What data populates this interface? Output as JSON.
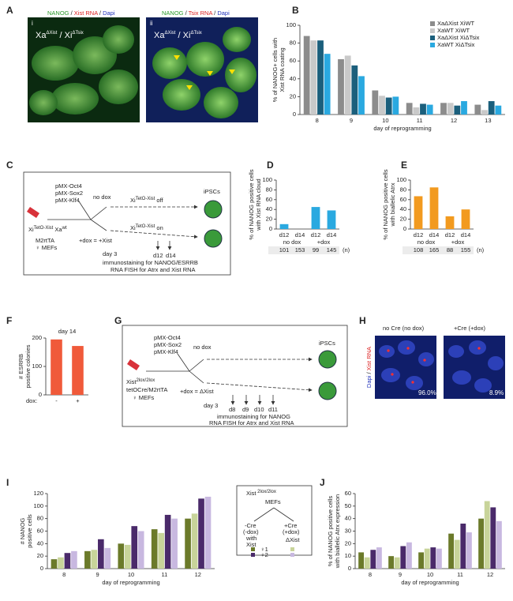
{
  "figure": {
    "A": {
      "letter": "A",
      "i": {
        "label": "i",
        "stain": [
          "NANOG",
          " / ",
          "Xist RNA",
          " / ",
          "Dapi"
        ],
        "genotype": [
          "Xa",
          "ΔXist",
          " / Xi",
          "ΔTsix"
        ]
      },
      "ii": {
        "label": "ii",
        "stain": [
          "NANOG",
          " / ",
          "Tsix RNA",
          " / ",
          "Dapi"
        ],
        "genotype": [
          "Xa",
          "ΔXist",
          " / Xi",
          "ΔTsix"
        ]
      }
    },
    "C": {
      "letter": "C",
      "plasmids": [
        "pMX-Oct4",
        "pMX-Sox2",
        "pMX-Klf4"
      ],
      "nodox": "no dox",
      "ipsc": "iPSCs",
      "off": [
        "Xi",
        "TetO-Xist",
        " off"
      ],
      "on": [
        "Xi",
        "TetO-Xist",
        " on"
      ],
      "dox": "+dox = +Xist",
      "cell": [
        "Xi",
        "TetO-Xist",
        " Xa",
        "wt"
      ],
      "line2": "M2rtTA",
      "line3": "♀ MEFs",
      "days": [
        "d12",
        "d14"
      ],
      "day3": "day 3",
      "notes": [
        "immunostaining for NANOG/ESRRB",
        "RNA FISH for Atrx and Xist RNA"
      ]
    },
    "G": {
      "letter": "G",
      "plasmids": [
        "pMX-Oct4",
        "pMX-Sox2",
        "pMX-Klf4"
      ],
      "nodox": "no dox",
      "ipsc": "iPSCs",
      "cell": [
        "Xist",
        "2lox/2lox"
      ],
      "line2": "tetOCre/M2rtTA",
      "line3": "♀ MEFs",
      "dox": "+dox = ΔXist",
      "days": [
        "d8",
        "d9",
        "d10",
        "d11"
      ],
      "day3": "day 3",
      "notes": [
        "immunostaining for NANOG",
        "RNA FISH for Atrx and Xist RNA"
      ]
    },
    "H": {
      "letter": "H",
      "titles": [
        "no Cre (no dox)",
        "+Cre (+dox)"
      ],
      "stain": [
        "Dapi",
        " / ",
        "Xist RNA"
      ],
      "pct": [
        "96.0%",
        "8.9%"
      ]
    },
    "legend_IJ": {
      "title": [
        "Xist",
        " 2lox/2lox"
      ],
      "sub": "MEFs",
      "cols": [
        "-Cre",
        "(-dox)",
        "+Cre",
        "(+dox)"
      ],
      "with": [
        "with",
        "Xist"
      ],
      "delta": "ΔXist",
      "rows": [
        "♀1",
        "♀2"
      ]
    }
  },
  "chart_data": [
    {
      "panel": "B",
      "type": "bar",
      "categories": [
        "8",
        "9",
        "10",
        "11",
        "12",
        "13"
      ],
      "series": [
        {
          "name": "XaΔXist XiWT",
          "color": "#8c8c8c",
          "values": [
            88,
            62,
            27,
            13,
            13,
            11
          ]
        },
        {
          "name": "XaWT XiWT",
          "color": "#c9c9c9",
          "values": [
            83,
            66,
            21,
            8,
            13,
            5
          ]
        },
        {
          "name": "XaΔXist XiΔTsix",
          "color": "#1b5f7c",
          "values": [
            83,
            55,
            19,
            12,
            10,
            15
          ]
        },
        {
          "name": "XaWT XiΔTsix",
          "color": "#2aa9e0",
          "values": [
            68,
            43,
            20,
            11,
            15,
            10
          ]
        }
      ],
      "ylim": [
        0,
        100
      ],
      "yticks": [
        0,
        20,
        40,
        60,
        80,
        100
      ],
      "ylabel": [
        "% of NANOG+ cells with",
        "Xist RNA coating"
      ],
      "xlabel": "day of reprogramming",
      "legend": "upper right"
    },
    {
      "panel": "D",
      "type": "bar",
      "categories": [
        "d12",
        "d14",
        "d12",
        "d14"
      ],
      "values": [
        10,
        0,
        45,
        38
      ],
      "color": "#2aa9e0",
      "groups": [
        "no dox",
        "+dox"
      ],
      "n": [
        101,
        153,
        99,
        145
      ],
      "n_label": "(n)",
      "ylim": [
        0,
        100
      ],
      "yticks": [
        0,
        20,
        40,
        60,
        80,
        100
      ],
      "ylabel": [
        "% of NANOG positive cells",
        "with Xist RNA cloud"
      ]
    },
    {
      "panel": "E",
      "type": "bar",
      "categories": [
        "d12",
        "d14",
        "d12",
        "d14"
      ],
      "values": [
        67,
        85,
        26,
        40
      ],
      "color": "#f29a1f",
      "groups": [
        "no dox",
        "+dox"
      ],
      "n": [
        108,
        165,
        88,
        155
      ],
      "n_label": "(n)",
      "ylim": [
        0,
        100
      ],
      "yticks": [
        0,
        20,
        40,
        60,
        80,
        100
      ],
      "ylabel": [
        "% of NANOG positive cells",
        "with biallelic Atrx"
      ]
    },
    {
      "panel": "F",
      "type": "bar",
      "title": "day 14",
      "categories": [
        "-",
        "+"
      ],
      "values": [
        195,
        172
      ],
      "color": "#f05a3a",
      "xlabel": "dox:",
      "ylim": [
        0,
        200
      ],
      "yticks": [
        0,
        100,
        200
      ],
      "ylabel": [
        "# ESRRB",
        "positive colonies"
      ]
    },
    {
      "panel": "I",
      "type": "bar",
      "categories": [
        "8",
        "9",
        "10",
        "11",
        "12"
      ],
      "series": [
        {
          "color": "#6b7a2a",
          "values": [
            15,
            28,
            40,
            63,
            80
          ]
        },
        {
          "color": "#c8d49a",
          "values": [
            18,
            30,
            38,
            57,
            88
          ]
        },
        {
          "color": "#4a2a6a",
          "values": [
            25,
            47,
            68,
            86,
            112
          ]
        },
        {
          "color": "#c8b8e0",
          "values": [
            28,
            33,
            60,
            80,
            115
          ]
        }
      ],
      "ylim": [
        0,
        120
      ],
      "yticks": [
        0,
        20,
        40,
        60,
        80,
        100,
        120
      ],
      "ylabel": [
        "# NANOG",
        "positive cells"
      ],
      "xlabel": "day of reprogramming"
    },
    {
      "panel": "J",
      "type": "bar",
      "categories": [
        "8",
        "9",
        "10",
        "11",
        "12"
      ],
      "series": [
        {
          "color": "#6b7a2a",
          "values": [
            13,
            10,
            13,
            28,
            40
          ]
        },
        {
          "color": "#c8d49a",
          "values": [
            9,
            9,
            16,
            23,
            54
          ]
        },
        {
          "color": "#4a2a6a",
          "values": [
            15,
            18,
            17,
            36,
            49
          ]
        },
        {
          "color": "#c8b8e0",
          "values": [
            17,
            21,
            16,
            29,
            38
          ]
        }
      ],
      "ylim": [
        0,
        60
      ],
      "yticks": [
        0,
        10,
        20,
        30,
        40,
        50,
        60
      ],
      "ylabel": [
        "% of NANOG positive cells",
        "with biallelic Atrx expression"
      ],
      "xlabel": "day of reprogramming"
    }
  ]
}
